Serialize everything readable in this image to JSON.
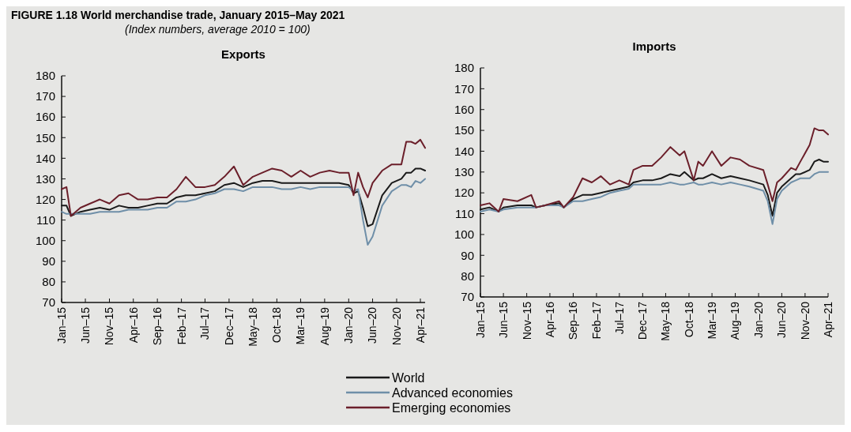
{
  "chart_data": [
    {
      "type": "line",
      "title": "Exports",
      "annotations": [
        "FIGURE 1.18 World merchandise trade, January 2015–May 2021",
        "(Index numbers, average 2010 = 100)"
      ],
      "x": [
        "2015-01",
        "2015-02",
        "2015-03",
        "2015-05",
        "2015-07",
        "2015-09",
        "2015-11",
        "2016-01",
        "2016-03",
        "2016-05",
        "2016-07",
        "2016-09",
        "2016-11",
        "2017-01",
        "2017-03",
        "2017-05",
        "2017-07",
        "2017-09",
        "2017-11",
        "2018-01",
        "2018-03",
        "2018-05",
        "2018-07",
        "2018-09",
        "2018-11",
        "2019-01",
        "2019-03",
        "2019-05",
        "2019-07",
        "2019-09",
        "2019-11",
        "2020-01",
        "2020-02",
        "2020-03",
        "2020-04",
        "2020-05",
        "2020-06",
        "2020-08",
        "2020-10",
        "2020-12",
        "2021-01",
        "2021-02",
        "2021-03",
        "2021-04",
        "2021-05"
      ],
      "series": [
        {
          "name": "World",
          "color": "#1a1a1a",
          "values": [
            117,
            117,
            112,
            114,
            115,
            116,
            115,
            117,
            116,
            116,
            117,
            118,
            118,
            121,
            122,
            122,
            123,
            124,
            127,
            128,
            126,
            128,
            129,
            129,
            128,
            128,
            128,
            128,
            128,
            128,
            128,
            127,
            123,
            124,
            116,
            107,
            108,
            122,
            128,
            130,
            133,
            133,
            135,
            135,
            134
          ]
        },
        {
          "name": "Advanced economies",
          "color": "#6f8fa8",
          "values": [
            114,
            113,
            113,
            113,
            113,
            114,
            114,
            114,
            115,
            115,
            115,
            116,
            116,
            119,
            119,
            120,
            122,
            123,
            125,
            125,
            124,
            126,
            126,
            126,
            125,
            125,
            126,
            125,
            126,
            126,
            126,
            126,
            124,
            125,
            110,
            98,
            102,
            117,
            124,
            127,
            127,
            126,
            129,
            128,
            130
          ]
        },
        {
          "name": "Emerging economies",
          "color": "#6b1f2a",
          "values": [
            125,
            126,
            112,
            116,
            118,
            120,
            118,
            122,
            123,
            120,
            120,
            121,
            121,
            125,
            131,
            126,
            126,
            127,
            131,
            136,
            127,
            131,
            133,
            135,
            134,
            131,
            134,
            131,
            133,
            134,
            133,
            133,
            122,
            133,
            126,
            121,
            128,
            134,
            137,
            137,
            148,
            148,
            147,
            149,
            145
          ]
        }
      ],
      "xlim": [
        "2015-01",
        "2021-05"
      ],
      "xticks": [
        {
          "value": "2015-01",
          "label": "Jan–15"
        },
        {
          "value": "2015-06",
          "label": "Jun–15"
        },
        {
          "value": "2015-11",
          "label": "Nov–15"
        },
        {
          "value": "2016-04",
          "label": "Apr–16"
        },
        {
          "value": "2016-09",
          "label": "Sep–16"
        },
        {
          "value": "2017-02",
          "label": "Feb–17"
        },
        {
          "value": "2017-07",
          "label": "Jul–17"
        },
        {
          "value": "2017-12",
          "label": "Dec–17"
        },
        {
          "value": "2018-05",
          "label": "May–18"
        },
        {
          "value": "2018-10",
          "label": "Oct–18"
        },
        {
          "value": "2019-03",
          "label": "Mar–19"
        },
        {
          "value": "2019-08",
          "label": "Aug–19"
        },
        {
          "value": "2020-01",
          "label": "Jan–20"
        },
        {
          "value": "2020-06",
          "label": "Jun–20"
        },
        {
          "value": "2020-11",
          "label": "Nov–20"
        },
        {
          "value": "2021-04",
          "label": "Apr–21"
        }
      ],
      "ylim": [
        70,
        180
      ],
      "yticks": [
        70,
        80,
        90,
        100,
        110,
        120,
        130,
        140,
        150,
        160,
        170,
        180
      ],
      "grid": false,
      "legend": "bottom",
      "marker": "none",
      "line_style": "solid"
    },
    {
      "type": "line",
      "title": "Imports",
      "x": [
        "2015-01",
        "2015-03",
        "2015-05",
        "2015-06",
        "2015-09",
        "2015-12",
        "2016-01",
        "2016-03",
        "2016-06",
        "2016-07",
        "2016-09",
        "2016-11",
        "2017-01",
        "2017-03",
        "2017-05",
        "2017-07",
        "2017-09",
        "2017-10",
        "2017-12",
        "2018-02",
        "2018-04",
        "2018-06",
        "2018-08",
        "2018-09",
        "2018-11",
        "2018-12",
        "2019-01",
        "2019-03",
        "2019-05",
        "2019-07",
        "2019-09",
        "2019-11",
        "2020-02",
        "2020-03",
        "2020-04",
        "2020-05",
        "2020-06",
        "2020-08",
        "2020-09",
        "2020-10",
        "2020-12",
        "2021-01",
        "2021-02",
        "2021-03",
        "2021-04"
      ],
      "series": [
        {
          "name": "World",
          "color": "#1a1a1a",
          "values": [
            112,
            113,
            111,
            113,
            114,
            114,
            113,
            114,
            115,
            113,
            117,
            119,
            119,
            120,
            121,
            122,
            123,
            125,
            126,
            126,
            127,
            129,
            128,
            130,
            126,
            127,
            127,
            129,
            127,
            128,
            127,
            126,
            124,
            119,
            109,
            120,
            123,
            127,
            129,
            129,
            131,
            135,
            136,
            135,
            135
          ]
        },
        {
          "name": "Advanced economies",
          "color": "#6f8fa8",
          "values": [
            111,
            112,
            111,
            112,
            113,
            113,
            113,
            114,
            114,
            113,
            116,
            116,
            117,
            118,
            120,
            121,
            122,
            124,
            124,
            124,
            124,
            125,
            124,
            124,
            125,
            124,
            124,
            125,
            124,
            125,
            124,
            123,
            121,
            116,
            105,
            117,
            121,
            125,
            126,
            127,
            127,
            129,
            130,
            130,
            130
          ]
        },
        {
          "name": "Emerging economies",
          "color": "#6b1f2a",
          "values": [
            114,
            115,
            111,
            117,
            116,
            119,
            113,
            114,
            116,
            113,
            118,
            127,
            125,
            128,
            124,
            126,
            124,
            131,
            133,
            133,
            137,
            142,
            138,
            140,
            126,
            135,
            133,
            140,
            133,
            137,
            136,
            133,
            131,
            124,
            116,
            125,
            127,
            132,
            131,
            135,
            143,
            151,
            150,
            150,
            148
          ]
        }
      ],
      "xlim": [
        "2015-01",
        "2021-04"
      ],
      "xticks": [
        {
          "value": "2015-01",
          "label": "Jan–15"
        },
        {
          "value": "2015-06",
          "label": "Jun–15"
        },
        {
          "value": "2015-11",
          "label": "Nov–15"
        },
        {
          "value": "2016-04",
          "label": "Apr–16"
        },
        {
          "value": "2016-09",
          "label": "Sep–16"
        },
        {
          "value": "2017-02",
          "label": "Feb–17"
        },
        {
          "value": "2017-07",
          "label": "Jul–17"
        },
        {
          "value": "2017-12",
          "label": "Dec–17"
        },
        {
          "value": "2018-05",
          "label": "May–18"
        },
        {
          "value": "2018-10",
          "label": "Oct–18"
        },
        {
          "value": "2019-03",
          "label": "Mar–19"
        },
        {
          "value": "2019-08",
          "label": "Aug–19"
        },
        {
          "value": "2020-01",
          "label": "Jan–20"
        },
        {
          "value": "2020-06",
          "label": "Jun–20"
        },
        {
          "value": "2020-11",
          "label": "Nov–20"
        },
        {
          "value": "2021-04",
          "label": "Apr–21"
        }
      ],
      "ylim": [
        70,
        180
      ],
      "yticks": [
        70,
        80,
        90,
        100,
        110,
        120,
        130,
        140,
        150,
        160,
        170,
        180
      ],
      "grid": false,
      "legend": "bottom",
      "marker": "none",
      "line_style": "solid"
    }
  ]
}
